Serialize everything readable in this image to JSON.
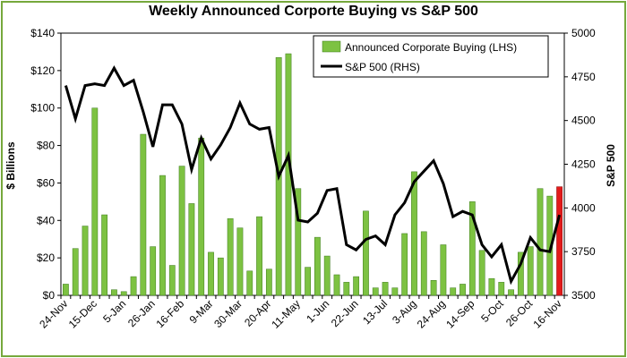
{
  "chart_data": {
    "type": "bar",
    "title": "Weekly Announced Corporte Buying  vs S&P 500",
    "ylabel_left": "$ Billions",
    "ylabel_right": "S&P 500",
    "ylim_left": [
      0,
      140
    ],
    "ylim_right": [
      3500,
      5000
    ],
    "yticks_left": [
      "$0",
      "$20",
      "$40",
      "$60",
      "$80",
      "$100",
      "$120",
      "$140"
    ],
    "yticks_left_values": [
      0,
      20,
      40,
      60,
      80,
      100,
      120,
      140
    ],
    "yticks_right": [
      "3500",
      "3750",
      "4000",
      "4250",
      "4500",
      "4750",
      "5000"
    ],
    "yticks_right_values": [
      3500,
      3750,
      4000,
      4250,
      4500,
      4750,
      5000
    ],
    "x_tick_labels": [
      "24-Nov",
      "15-Dec",
      "5-Jan",
      "26-Jan",
      "16-Feb",
      "9-Mar",
      "30-Mar",
      "20-Apr",
      "11-May",
      "1-Jun",
      "22-Jun",
      "13-Jul",
      "3-Aug",
      "24-Aug",
      "14-Sep",
      "5-Oct",
      "26-Oct",
      "16-Nov"
    ],
    "x_tick_every": 3,
    "grid": false,
    "legend_position": "top-right",
    "series": [
      {
        "name": "Announced Corporate Buying (LHS)",
        "axis": "left",
        "type": "bar",
        "color": "#7dc242",
        "highlight_last_color": "#e31b1b",
        "values": [
          6,
          25,
          37,
          100,
          43,
          3,
          2,
          10,
          86,
          26,
          64,
          16,
          69,
          49,
          84,
          23,
          20,
          41,
          36,
          13,
          42,
          14,
          127,
          129,
          57,
          15,
          31,
          21,
          11,
          7,
          10,
          45,
          4,
          7,
          4,
          33,
          66,
          34,
          8,
          27,
          4,
          6,
          50,
          24,
          9,
          7,
          3,
          23,
          26,
          57,
          53,
          58
        ]
      },
      {
        "name": "S&P 500 (RHS)",
        "axis": "right",
        "type": "line",
        "color": "#000000",
        "values": [
          4700,
          4510,
          4700,
          4710,
          4700,
          4800,
          4700,
          4730,
          4550,
          4350,
          4590,
          4590,
          4480,
          4220,
          4400,
          4280,
          4360,
          4460,
          4600,
          4480,
          4450,
          4460,
          4180,
          4300,
          3930,
          3920,
          3970,
          4100,
          4110,
          3790,
          3760,
          3820,
          3840,
          3790,
          3960,
          4030,
          4150,
          4210,
          4270,
          4140,
          3950,
          3980,
          3960,
          3790,
          3720,
          3790,
          3580,
          3680,
          3830,
          3760,
          3750,
          3960
        ]
      }
    ]
  }
}
